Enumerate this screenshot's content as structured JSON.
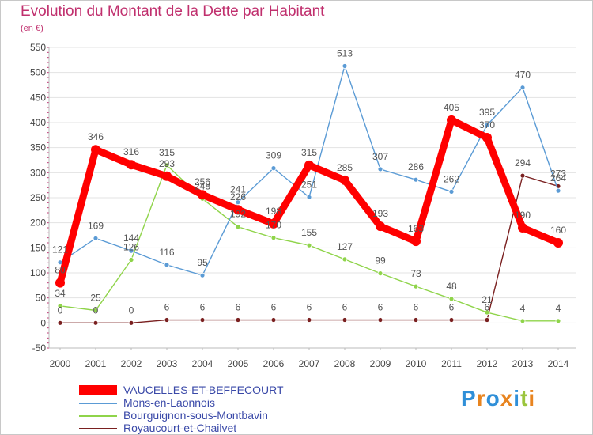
{
  "page": {
    "title": "Evolution du Montant de la Dette par Habitant",
    "subtitle": "(en €)"
  },
  "chart_data": {
    "type": "line",
    "title": "Evolution du Montant de la Dette par Habitant",
    "unit_label": "(en €)",
    "xlabel": "",
    "ylabel": "",
    "categories": [
      "2000",
      "2001",
      "2002",
      "2003",
      "2004",
      "2005",
      "2006",
      "2007",
      "2008",
      "2009",
      "2010",
      "2011",
      "2012",
      "2013",
      "2014"
    ],
    "ylim": [
      -50,
      550
    ],
    "yticks": [
      -50,
      0,
      50,
      100,
      150,
      200,
      250,
      300,
      350,
      400,
      450,
      500,
      550
    ],
    "grid": "horizontal",
    "series": [
      {
        "name": "VAUCELLES-ET-BEFFECOURT",
        "color": "#ff0000",
        "values": [
          80,
          346,
          316,
          293,
          256,
          226,
          198,
          315,
          285,
          193,
          163,
          405,
          370,
          190,
          160
        ],
        "labels": [
          "80",
          "346",
          "316",
          "293",
          "256",
          "226",
          "198",
          "315",
          "285",
          "193",
          "163",
          "405",
          "370",
          "190",
          "160"
        ]
      },
      {
        "name": "Mons-en-Laonnois",
        "color": "#5b9bd5",
        "values": [
          121,
          169,
          144,
          116,
          95,
          241,
          309,
          251,
          513,
          307,
          286,
          262,
          395,
          470,
          264
        ],
        "labels": [
          "121",
          "169",
          "144",
          "116",
          "95",
          "241",
          "309",
          "251",
          "513",
          "307",
          "286",
          "262",
          "395",
          "470",
          "264"
        ]
      },
      {
        "name": "Bourguignon-sous-Montbavin",
        "color": "#8fd44a",
        "values": [
          34,
          25,
          126,
          315,
          248,
          192,
          170,
          155,
          127,
          99,
          73,
          48,
          21,
          4,
          4
        ],
        "labels": [
          "34",
          "25",
          "126",
          "315",
          "248",
          "192",
          "170",
          "155",
          "127",
          "99",
          "73",
          "48",
          "21",
          "4",
          "4"
        ]
      },
      {
        "name": "Royaucourt-et-Chailvet",
        "color": "#7a2020",
        "values": [
          0,
          0,
          0,
          6,
          6,
          6,
          6,
          6,
          6,
          6,
          6,
          6,
          6,
          294,
          273
        ],
        "labels": [
          "0",
          "0",
          "0",
          "6",
          "6",
          "6",
          "6",
          "6",
          "6",
          "6",
          "6",
          "6",
          "6",
          "294",
          "273"
        ]
      }
    ]
  },
  "legend": {
    "items": [
      {
        "label": "VAUCELLES-ET-BEFFECOURT",
        "color": "#ff0000"
      },
      {
        "label": "Mons-en-Laonnois",
        "color": "#5b9bd5"
      },
      {
        "label": "Bourguignon-sous-Montbavin",
        "color": "#8fd44a"
      },
      {
        "label": "Royaucourt-et-Chailvet",
        "color": "#7a2020"
      }
    ]
  },
  "logo": {
    "text": "Proxiti",
    "letter_colors": [
      "#2f8fd8",
      "#e8841f",
      "#2f8fd8",
      "#e8841f",
      "#2f8fd8",
      "#9bc53d",
      "#e8841f"
    ]
  }
}
